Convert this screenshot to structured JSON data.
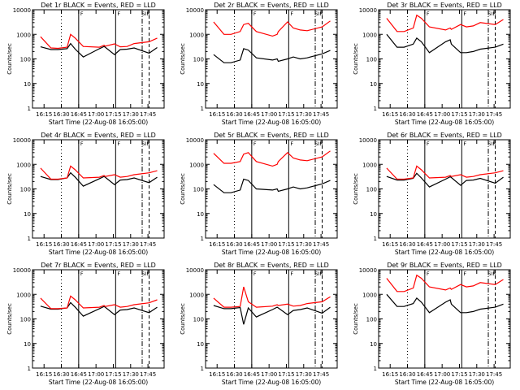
{
  "colors": {
    "background": "#ffffff",
    "axes": "#000000",
    "events": "#000000",
    "lld": "#ff0000"
  },
  "chart_data": [
    {
      "type": "line",
      "title": "Det 1r BLACK = Events, RED = LLD",
      "xlabel": "Start Time (22-Aug-08 16:05:00)",
      "ylabel": "Counts/sec",
      "xticks": [
        "16:15",
        "16:30",
        "16:45",
        "17:00",
        "17:15",
        "17:30",
        "17:45"
      ],
      "yticks": [
        "1",
        "10",
        "100",
        "1000",
        "10000"
      ],
      "yscale": "log",
      "ylim": [
        1,
        10000
      ],
      "annotations": [
        "F",
        "F",
        "SIII"
      ],
      "series": [
        {
          "name": "Events",
          "color": "#000000",
          "x_min": [
            7,
            16,
            22,
            30,
            33,
            37,
            44,
            58,
            62,
            63,
            71,
            76,
            82,
            88,
            101,
            108
          ],
          "values": [
            310,
            240,
            240,
            260,
            420,
            250,
            120,
            260,
            320,
            300,
            150,
            240,
            250,
            280,
            170,
            290
          ]
        },
        {
          "name": "LLD",
          "color": "#ff0000",
          "x_min": [
            7,
            16,
            22,
            30,
            33,
            37,
            44,
            58,
            62,
            63,
            71,
            76,
            82,
            88,
            101,
            108
          ],
          "values": [
            800,
            280,
            270,
            300,
            1000,
            700,
            320,
            300,
            360,
            330,
            410,
            310,
            320,
            420,
            500,
            700
          ]
        }
      ]
    },
    {
      "type": "line",
      "title": "Det 2r BLACK = Events, RED = LLD",
      "xlabel": "Start Time (22-Aug-08 16:05:00)",
      "ylabel": "Counts/sec",
      "xticks": [
        "16:15",
        "16:30",
        "16:45",
        "17:00",
        "17:15",
        "17:30",
        "17:45"
      ],
      "yticks": [
        "1",
        "10",
        "100",
        "1000",
        "10000"
      ],
      "yscale": "log",
      "ylim": [
        1,
        10000
      ],
      "annotations": [
        "F",
        "F",
        "SIII"
      ],
      "series": [
        {
          "name": "Events",
          "color": "#000000",
          "x_min": [
            7,
            16,
            22,
            30,
            33,
            37,
            44,
            58,
            62,
            63,
            71,
            76,
            82,
            88,
            101,
            108
          ],
          "values": [
            150,
            70,
            70,
            90,
            260,
            230,
            110,
            90,
            100,
            80,
            100,
            120,
            100,
            110,
            160,
            220
          ]
        },
        {
          "name": "LLD",
          "color": "#ff0000",
          "x_min": [
            7,
            16,
            22,
            30,
            33,
            37,
            44,
            58,
            62,
            63,
            71,
            76,
            82,
            88,
            101,
            108
          ],
          "values": [
            3200,
            1000,
            1000,
            1300,
            2500,
            2800,
            1300,
            850,
            1000,
            1300,
            3200,
            1800,
            1500,
            1400,
            2000,
            3500
          ]
        }
      ]
    },
    {
      "type": "line",
      "title": "Det 3r BLACK = Events, RED = LLD",
      "xlabel": "Start Time (22-Aug-08 16:05:00)",
      "ylabel": "Counts/sec",
      "xticks": [
        "16:15",
        "16:30",
        "16:45",
        "17:00",
        "17:15",
        "17:30",
        "17:45"
      ],
      "yticks": [
        "1",
        "10",
        "100",
        "1000",
        "10000"
      ],
      "yscale": "log",
      "ylim": [
        1,
        10000
      ],
      "annotations": [
        "F",
        "F",
        "SIII"
      ],
      "series": [
        {
          "name": "Events",
          "color": "#000000",
          "x_min": [
            7,
            16,
            22,
            30,
            33,
            37,
            44,
            58,
            62,
            63,
            71,
            76,
            82,
            88,
            101,
            108
          ],
          "values": [
            1000,
            300,
            300,
            400,
            700,
            500,
            180,
            500,
            600,
            400,
            180,
            180,
            200,
            250,
            300,
            400
          ]
        },
        {
          "name": "LLD",
          "color": "#ff0000",
          "x_min": [
            7,
            16,
            22,
            30,
            33,
            37,
            44,
            58,
            62,
            63,
            71,
            76,
            82,
            88,
            101,
            108
          ],
          "values": [
            4500,
            1300,
            1300,
            1800,
            6000,
            4500,
            2000,
            1500,
            1800,
            1600,
            2500,
            2000,
            2200,
            3000,
            2500,
            4000
          ]
        }
      ]
    },
    {
      "type": "line",
      "title": "Det 4r BLACK = Events, RED = LLD",
      "xlabel": "Start Time (22-Aug-08 16:05:00)",
      "ylabel": "Counts/sec",
      "xticks": [
        "16:15",
        "16:30",
        "16:45",
        "17:00",
        "17:15",
        "17:30",
        "17:45"
      ],
      "yticks": [
        "1",
        "10",
        "100",
        "1000",
        "10000"
      ],
      "yscale": "log",
      "ylim": [
        1,
        10000
      ],
      "annotations": [
        "F",
        "F",
        "SIII"
      ],
      "series": [
        {
          "name": "Events",
          "color": "#000000",
          "x_min": [
            7,
            16,
            22,
            30,
            33,
            37,
            44,
            58,
            62,
            63,
            71,
            76,
            82,
            88,
            101,
            108
          ],
          "values": [
            320,
            240,
            240,
            280,
            450,
            300,
            130,
            260,
            320,
            300,
            150,
            230,
            240,
            280,
            180,
            300
          ]
        },
        {
          "name": "LLD",
          "color": "#ff0000",
          "x_min": [
            7,
            16,
            22,
            30,
            33,
            37,
            44,
            58,
            62,
            63,
            71,
            76,
            82,
            88,
            101,
            108
          ],
          "values": [
            700,
            250,
            250,
            280,
            850,
            600,
            280,
            300,
            350,
            320,
            380,
            300,
            320,
            380,
            450,
            550
          ]
        }
      ]
    },
    {
      "type": "line",
      "title": "Det 5r BLACK = Events, RED = LLD",
      "xlabel": "Start Time (22-Aug-08 16:05:00)",
      "ylabel": "Counts/sec",
      "xticks": [
        "16:15",
        "16:30",
        "16:45",
        "17:00",
        "17:15",
        "17:30",
        "17:45"
      ],
      "yticks": [
        "1",
        "10",
        "100",
        "1000",
        "10000"
      ],
      "yscale": "log",
      "ylim": [
        1,
        10000
      ],
      "annotations": [
        "F",
        "F",
        "SIII"
      ],
      "series": [
        {
          "name": "Events",
          "color": "#000000",
          "x_min": [
            7,
            16,
            22,
            30,
            33,
            37,
            44,
            58,
            62,
            63,
            71,
            76,
            82,
            88,
            101,
            108
          ],
          "values": [
            150,
            70,
            70,
            90,
            250,
            220,
            100,
            90,
            100,
            80,
            100,
            120,
            100,
            110,
            160,
            220
          ]
        },
        {
          "name": "LLD",
          "color": "#ff0000",
          "x_min": [
            7,
            16,
            22,
            30,
            33,
            37,
            44,
            58,
            62,
            63,
            71,
            76,
            82,
            88,
            101,
            108
          ],
          "values": [
            2800,
            1100,
            1100,
            1300,
            2600,
            3000,
            1300,
            850,
            1000,
            1300,
            3000,
            1800,
            1500,
            1400,
            2000,
            3500
          ]
        }
      ]
    },
    {
      "type": "line",
      "title": "Det 6r BLACK = Events, RED = LLD",
      "xlabel": "Start Time (22-Aug-08 16:05:00)",
      "ylabel": "Counts/sec",
      "xticks": [
        "16:15",
        "16:30",
        "16:45",
        "17:00",
        "17:15",
        "17:30",
        "17:45"
      ],
      "yticks": [
        "1",
        "10",
        "100",
        "1000",
        "10000"
      ],
      "yscale": "log",
      "ylim": [
        1,
        10000
      ],
      "annotations": [
        "F",
        "F",
        "SIII"
      ],
      "series": [
        {
          "name": "Events",
          "color": "#000000",
          "x_min": [
            7,
            16,
            22,
            30,
            33,
            37,
            44,
            58,
            62,
            63,
            71,
            76,
            82,
            88,
            101,
            108
          ],
          "values": [
            320,
            230,
            230,
            270,
            430,
            280,
            120,
            250,
            310,
            290,
            140,
            220,
            230,
            270,
            170,
            300
          ]
        },
        {
          "name": "LLD",
          "color": "#ff0000",
          "x_min": [
            7,
            16,
            22,
            30,
            33,
            37,
            44,
            58,
            62,
            63,
            71,
            76,
            82,
            88,
            101,
            108
          ],
          "values": [
            700,
            250,
            250,
            280,
            850,
            600,
            280,
            300,
            350,
            320,
            380,
            300,
            320,
            380,
            450,
            550
          ]
        }
      ]
    },
    {
      "type": "line",
      "title": "Det 7r BLACK = Events, RED = LLD",
      "xlabel": "Start Time (22-Aug-08 16:05:00)",
      "ylabel": "Counts/sec",
      "xticks": [
        "16:15",
        "16:30",
        "16:45",
        "17:00",
        "17:15",
        "17:30",
        "17:45"
      ],
      "yticks": [
        "1",
        "10",
        "100",
        "1000",
        "10000"
      ],
      "yscale": "log",
      "ylim": [
        1,
        10000
      ],
      "annotations": [
        "F",
        "F",
        "SIII"
      ],
      "series": [
        {
          "name": "Events",
          "color": "#000000",
          "x_min": [
            7,
            16,
            22,
            30,
            33,
            37,
            44,
            58,
            62,
            63,
            71,
            76,
            82,
            88,
            101,
            108
          ],
          "values": [
            330,
            250,
            250,
            280,
            460,
            300,
            130,
            260,
            320,
            300,
            150,
            230,
            240,
            280,
            180,
            300
          ]
        },
        {
          "name": "LLD",
          "color": "#ff0000",
          "x_min": [
            7,
            16,
            22,
            30,
            33,
            37,
            44,
            58,
            62,
            63,
            71,
            76,
            82,
            88,
            101,
            108
          ],
          "values": [
            700,
            260,
            260,
            280,
            850,
            600,
            280,
            300,
            350,
            320,
            380,
            300,
            320,
            380,
            450,
            600
          ]
        }
      ]
    },
    {
      "type": "line",
      "title": "Det 8r BLACK = Events, RED = LLD",
      "xlabel": "Start Time (22-Aug-08 16:05:00)",
      "ylabel": "Counts/sec",
      "xticks": [
        "16:15",
        "16:30",
        "16:45",
        "17:00",
        "17:15",
        "17:30",
        "17:45"
      ],
      "yticks": [
        "1",
        "10",
        "100",
        "1000",
        "10000"
      ],
      "yscale": "log",
      "ylim": [
        1,
        10000
      ],
      "annotations": [
        "F",
        "F",
        "SIII"
      ],
      "series": [
        {
          "name": "Events",
          "color": "#000000",
          "x_min": [
            7,
            16,
            22,
            30,
            33,
            37,
            44,
            58,
            62,
            63,
            71,
            76,
            82,
            88,
            101,
            108
          ],
          "values": [
            350,
            260,
            260,
            290,
            60,
            280,
            120,
            240,
            300,
            280,
            150,
            220,
            240,
            280,
            170,
            300
          ]
        },
        {
          "name": "LLD",
          "color": "#ff0000",
          "x_min": [
            7,
            16,
            22,
            30,
            33,
            37,
            44,
            58,
            62,
            63,
            71,
            76,
            82,
            88,
            101,
            108
          ],
          "values": [
            700,
            300,
            300,
            320,
            2000,
            500,
            300,
            330,
            380,
            350,
            400,
            330,
            350,
            420,
            500,
            800
          ]
        }
      ]
    },
    {
      "type": "line",
      "title": "Det 9r BLACK = Events, RED = LLD",
      "xlabel": "Start Time (22-Aug-08 16:05:00)",
      "ylabel": "Counts/sec",
      "xticks": [
        "16:15",
        "16:30",
        "16:45",
        "17:00",
        "17:15",
        "17:30",
        "17:45"
      ],
      "yticks": [
        "1",
        "10",
        "100",
        "1000",
        "10000"
      ],
      "yscale": "log",
      "ylim": [
        1,
        10000
      ],
      "annotations": [
        "F",
        "F",
        "SIII"
      ],
      "series": [
        {
          "name": "Events",
          "color": "#000000",
          "x_min": [
            7,
            16,
            22,
            30,
            33,
            37,
            44,
            58,
            62,
            63,
            71,
            76,
            82,
            88,
            101,
            108
          ],
          "values": [
            1000,
            320,
            320,
            420,
            700,
            480,
            180,
            480,
            600,
            400,
            180,
            180,
            200,
            250,
            300,
            400
          ]
        },
        {
          "name": "LLD",
          "color": "#ff0000",
          "x_min": [
            7,
            16,
            22,
            30,
            33,
            37,
            44,
            58,
            62,
            63,
            71,
            76,
            82,
            88,
            101,
            108
          ],
          "values": [
            4500,
            1300,
            1300,
            1800,
            6000,
            4500,
            2000,
            1500,
            1800,
            1600,
            2500,
            2000,
            2200,
            3000,
            2500,
            4000
          ]
        }
      ]
    }
  ]
}
